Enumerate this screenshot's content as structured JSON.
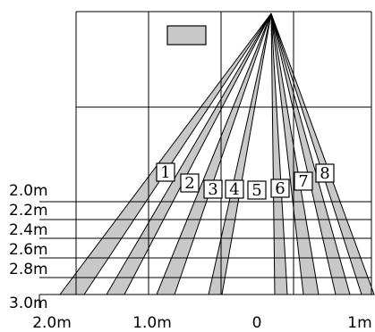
{
  "diagram": {
    "distance_labels": [
      "2.0m",
      "2.2m",
      "2.4m",
      "2.6m",
      "2.8m",
      "3.0m"
    ],
    "width_labels": [
      "2.0m",
      "1.0m",
      "0",
      "1m"
    ],
    "zone_labels": [
      "1",
      "2",
      "3",
      "4",
      "5",
      "6",
      "7",
      "8"
    ],
    "colors": {
      "beam_fill": "#c8c8c8",
      "line": "#000000",
      "background": "#ffffff"
    }
  }
}
